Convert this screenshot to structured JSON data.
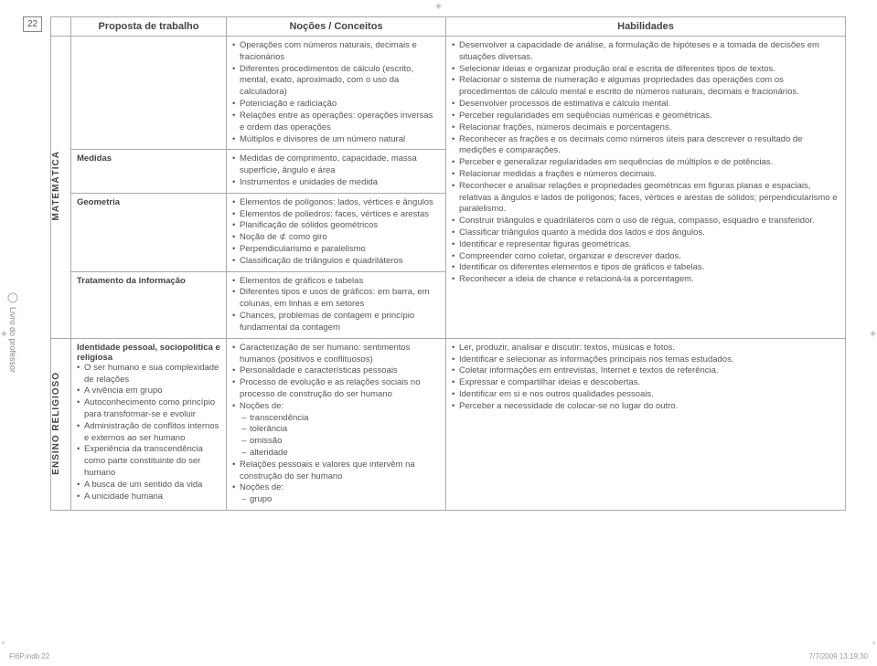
{
  "page_number": "22",
  "spine": "Livro do professor",
  "headers": {
    "proposta": "Proposta de trabalho",
    "nocoes": "Noções / Conceitos",
    "habilidades": "Habilidades"
  },
  "subjects": {
    "matematica": "MATEMÁTICA",
    "religioso": "ENSINO RELIGIOSO"
  },
  "mat": {
    "row1": {
      "nocoes": [
        "Operações com números naturais, decimais e fracionários",
        "Diferentes procedimentos de cálculo (escrito, mental, exato, aproximado, com o uso da calculadora)",
        "Potenciação e radiciação",
        "Relações entre as operações: operações inversas e ordem das operações",
        "Múltiplos e divisores de um número natural"
      ]
    },
    "row2": {
      "proposta": "Medidas",
      "nocoes": [
        "Medidas de comprimento, capacidade, massa superfície, ângulo e área",
        "Instrumentos e unidades de medida"
      ]
    },
    "row3": {
      "proposta": "Geometria",
      "nocoes": [
        "Elementos de polígonos: lados, vértices e ângulos",
        "Elementos de poliedros: faces, vértices e arestas",
        "Planificação de sólidos geométricos",
        "Noção de ⊄ como giro",
        "Perpendicularismo e paralelismo",
        "Classificação de triângulos e quadriláteros"
      ]
    },
    "row4": {
      "proposta": "Tratamento da informação",
      "nocoes": [
        "Elementos de gráficos e tabelas",
        "Diferentes tipos e usos de gráficos: em barra, em colunas, em linhas e em setores",
        "Chances, problemas de contagem e princípio fundamental da contagem"
      ]
    },
    "habilidades": [
      "Desenvolver a capacidade de análise, a formulação de hipóteses e a tomada de decisões em situações diversas.",
      "Selecionar ideias e organizar produção oral e escrita de diferentes tipos de textos.",
      "Relacionar o sistema de numeração e algumas propriedades das operações com os procedimentos de cálculo mental e escrito de números naturais, decimais e fracionários.",
      "Desenvolver processos de estimativa e cálculo mental.",
      "Perceber regularidades em sequências numéricas e geométricas.",
      "Relacionar frações, números decimais e porcentagens.",
      "Reconhecer as frações e os decimais como números úteis para descrever o resultado de medições e comparações.",
      "Perceber e generalizar regularidades em sequências de múltiplos e de potências.",
      "Relacionar medidas a frações e números decimais.",
      "Reconhecer e analisar relações e propriedades geométricas em figuras planas e espaciais, relativas a ângulos e lados de polígonos; faces, vértices e arestas de sólidos; perpendicularismo e paralelismo.",
      "Construir triângulos e quadriláteros com o uso de régua, compasso, esquadro e transferidor.",
      "Classificar triângulos quanto à medida dos lados e dos ângulos.",
      "Identificar e representar figuras geométricas.",
      "Compreender como coletar, organizar e descrever dados.",
      "Identificar os diferentes elementos e tipos de gráficos e tabelas.",
      "Reconhecer a ideia de chance e relacioná-la a porcentagem."
    ]
  },
  "rel": {
    "proposta_title": "Identidade pessoal, sociopolítica e religiosa",
    "proposta_items": [
      "O ser humano e sua complexidade de relações",
      "A vivência em grupo",
      "Autoconhecimento como princípio para transformar-se e evoluir",
      "Administração de conflitos internos e externos ao ser humano",
      "Experiência da transcendência como parte constituinte do ser humano",
      "A busca de um sentido da vida",
      "A unicidade humana"
    ],
    "nocoes_pre": [
      "Caracterização de ser humano: sentimentos humanos (positivos e conflituosos)",
      "Personalidade e características pessoais",
      "Processo de evolução e as relações sociais no processo de construção do ser humano",
      "Noções de:"
    ],
    "nocoes_sub1": [
      "transcendência",
      "tolerância",
      "omissão",
      "alteridade"
    ],
    "nocoes_mid": [
      "Relações pessoais e valores que intervêm na construção do ser humano",
      "Noções de:"
    ],
    "nocoes_sub2": [
      "grupo"
    ],
    "habilidades": [
      "Ler, produzir, analisar e discutir: textos, músicas e fotos.",
      "Identificar e selecionar as informações principais nos temas estudados.",
      "Coletar informações em entrevistas, Internet e textos de referência.",
      "Expressar e compartilhar ideias e descobertas.",
      "Identificar em si e nos outros qualidades pessoais.",
      "Perceber a necessidade de colocar-se no lugar do outro."
    ]
  },
  "footer": {
    "left": "FI6P.indb   22",
    "right": "7/7/2009   13:19:30"
  }
}
